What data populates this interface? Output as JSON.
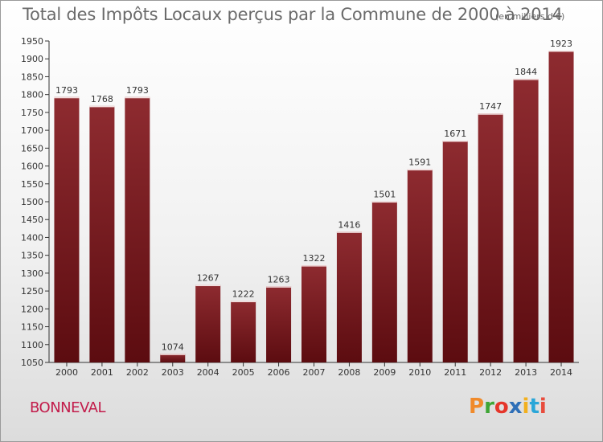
{
  "header": {
    "title": "Total des Impôts Locaux perçus par la Commune de 2000 à 2014",
    "unit_note": "(en milliers d'€)"
  },
  "footer": {
    "commune": "BONNEVAL",
    "logo": "Proxiti",
    "logo_colors": [
      "#f08a2a",
      "#3fa535",
      "#e5352a",
      "#2f6fb7",
      "#f2b01e",
      "#2aa6d8",
      "#e84c3d"
    ]
  },
  "colors": {
    "bar": "#7a1a1f",
    "bar_top": "#8e2b30",
    "bar_bottom": "#5c0c10",
    "axis": "#333333",
    "grid": "#d0d0d0"
  },
  "chart_data": {
    "type": "bar",
    "title": "Total des Impôts Locaux perçus par la Commune de 2000 à 2014",
    "subtitle": "(en milliers d'€)",
    "xlabel": "",
    "ylabel": "",
    "categories": [
      "2000",
      "2001",
      "2002",
      "2003",
      "2004",
      "2005",
      "2006",
      "2007",
      "2008",
      "2009",
      "2010",
      "2011",
      "2012",
      "2013",
      "2014"
    ],
    "values": [
      1793,
      1768,
      1793,
      1074,
      1267,
      1222,
      1263,
      1322,
      1416,
      1501,
      1591,
      1671,
      1747,
      1844,
      1923
    ],
    "ylim": [
      1050,
      1950
    ],
    "yticks": [
      1050,
      1100,
      1150,
      1200,
      1250,
      1300,
      1350,
      1400,
      1450,
      1500,
      1550,
      1600,
      1650,
      1700,
      1750,
      1800,
      1850,
      1900,
      1950
    ],
    "grid": false,
    "legend": "none",
    "data_labels": true
  }
}
